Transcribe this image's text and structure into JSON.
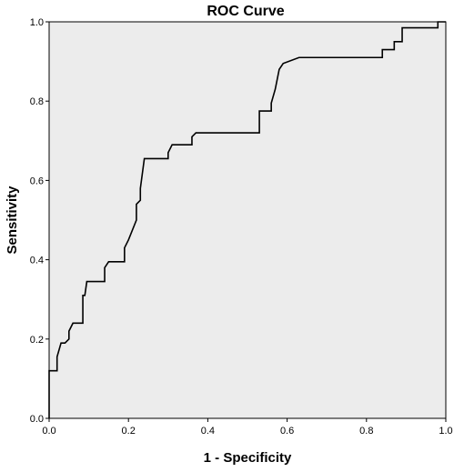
{
  "chart_data": {
    "type": "line",
    "title": "ROC Curve",
    "xlabel": "1 - Specificity",
    "ylabel": "Sensitivity",
    "xlim": [
      0,
      1
    ],
    "ylim": [
      0,
      1
    ],
    "x_ticks": [
      "0.0",
      "0.2",
      "0.4",
      "0.6",
      "0.8",
      "1.0"
    ],
    "y_ticks": [
      "0.0",
      "0.2",
      "0.4",
      "0.6",
      "0.8",
      "1.0"
    ],
    "grid": false,
    "colors": {
      "background": "#ececec",
      "line": "#000000"
    },
    "series": [
      {
        "step": true,
        "x": [
          0.0,
          0.0,
          0.02,
          0.02,
          0.03,
          0.04,
          0.05,
          0.05,
          0.06,
          0.06,
          0.085,
          0.085,
          0.09,
          0.095,
          0.14,
          0.14,
          0.15,
          0.16,
          0.19,
          0.19,
          0.2,
          0.22,
          0.22,
          0.23,
          0.23,
          0.24,
          0.3,
          0.3,
          0.31,
          0.31,
          0.36,
          0.36,
          0.37,
          0.37,
          0.53,
          0.53,
          0.56,
          0.56,
          0.57,
          0.57,
          0.58,
          0.58,
          0.59,
          0.59,
          0.63,
          0.63,
          0.84,
          0.84,
          0.87,
          0.87,
          0.89,
          0.89,
          0.98,
          0.98,
          1.0
        ],
        "y": [
          0.0,
          0.12,
          0.12,
          0.155,
          0.19,
          0.19,
          0.2,
          0.22,
          0.24,
          0.24,
          0.24,
          0.31,
          0.31,
          0.345,
          0.345,
          0.38,
          0.395,
          0.395,
          0.395,
          0.43,
          0.45,
          0.5,
          0.54,
          0.55,
          0.58,
          0.655,
          0.655,
          0.67,
          0.69,
          0.69,
          0.69,
          0.71,
          0.72,
          0.72,
          0.72,
          0.775,
          0.775,
          0.795,
          0.83,
          0.83,
          0.88,
          0.88,
          0.895,
          0.895,
          0.91,
          0.91,
          0.91,
          0.93,
          0.93,
          0.95,
          0.95,
          0.985,
          0.985,
          1.0,
          1.0
        ]
      }
    ]
  }
}
